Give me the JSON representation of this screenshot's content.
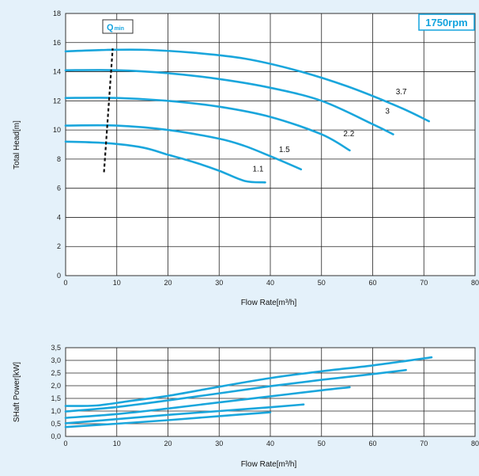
{
  "chart_data": [
    {
      "type": "line",
      "title": "",
      "xlabel": "Flow Rate[m³/h]",
      "ylabel": "Total Head[m]",
      "xlim": [
        0,
        80
      ],
      "ylim": [
        0,
        18
      ],
      "xticks": [
        0,
        10,
        20,
        30,
        40,
        50,
        60,
        70,
        80
      ],
      "yticks": [
        0,
        2,
        4,
        6,
        8,
        10,
        12,
        14,
        16,
        18
      ],
      "grid": true,
      "speed_label": "1750rpm",
      "qmin": {
        "label_main": "Q",
        "label_sub": "min",
        "line": [
          [
            7.5,
            7.1
          ],
          [
            9.2,
            15.6
          ]
        ]
      },
      "line_color": "#1aa6dc",
      "series": [
        {
          "name": "1.1",
          "points": [
            [
              0,
              9.2
            ],
            [
              8,
              9.1
            ],
            [
              15,
              8.8
            ],
            [
              20,
              8.3
            ],
            [
              25,
              7.8
            ],
            [
              30,
              7.2
            ],
            [
              35,
              6.5
            ],
            [
              39,
              6.4
            ]
          ]
        },
        {
          "name": "1.5",
          "points": [
            [
              0,
              10.3
            ],
            [
              10,
              10.3
            ],
            [
              20,
              10.0
            ],
            [
              30,
              9.4
            ],
            [
              35,
              8.9
            ],
            [
              40,
              8.2
            ],
            [
              46,
              7.3
            ]
          ]
        },
        {
          "name": "2.2",
          "points": [
            [
              0,
              12.2
            ],
            [
              10,
              12.2
            ],
            [
              20,
              12.0
            ],
            [
              30,
              11.6
            ],
            [
              40,
              10.9
            ],
            [
              50,
              9.7
            ],
            [
              55.5,
              8.6
            ]
          ]
        },
        {
          "name": "3",
          "points": [
            [
              0,
              14.1
            ],
            [
              10,
              14.1
            ],
            [
              20,
              13.9
            ],
            [
              30,
              13.5
            ],
            [
              40,
              12.9
            ],
            [
              50,
              12.0
            ],
            [
              60,
              10.4
            ],
            [
              64,
              9.7
            ]
          ]
        },
        {
          "name": "3.7",
          "points": [
            [
              0,
              15.4
            ],
            [
              8,
              15.5
            ],
            [
              16,
              15.5
            ],
            [
              25,
              15.3
            ],
            [
              35,
              14.9
            ],
            [
              45,
              14.1
            ],
            [
              55,
              13.0
            ],
            [
              65,
              11.6
            ],
            [
              71,
              10.6
            ]
          ]
        }
      ]
    },
    {
      "type": "line",
      "title": "",
      "xlabel": "Flow Rate[m³/h]",
      "ylabel": "SHaft Power[kW]",
      "xlim": [
        0,
        80
      ],
      "ylim": [
        0,
        3.5
      ],
      "xticks": [
        0,
        10,
        20,
        30,
        40,
        50,
        60,
        70,
        80
      ],
      "yticks": [
        "0,0",
        "0,5",
        "1,0",
        "1,5",
        "2,0",
        "2,5",
        "3,0",
        "3,5"
      ],
      "ytick_values": [
        0,
        0.5,
        1.0,
        1.5,
        2.0,
        2.5,
        3.0,
        3.5
      ],
      "grid": true,
      "line_color": "#1aa6dc",
      "series": [
        {
          "name": "1.1",
          "points": [
            [
              0,
              0.37
            ],
            [
              10,
              0.5
            ],
            [
              20,
              0.64
            ],
            [
              30,
              0.8
            ],
            [
              40,
              0.95
            ]
          ]
        },
        {
          "name": "1.5",
          "points": [
            [
              0,
              0.52
            ],
            [
              10,
              0.68
            ],
            [
              20,
              0.85
            ],
            [
              30,
              1.0
            ],
            [
              40,
              1.15
            ],
            [
              46.5,
              1.26
            ]
          ]
        },
        {
          "name": "2.2",
          "points": [
            [
              0,
              0.73
            ],
            [
              10,
              0.88
            ],
            [
              20,
              1.1
            ],
            [
              30,
              1.34
            ],
            [
              40,
              1.58
            ],
            [
              50,
              1.82
            ],
            [
              55.5,
              1.94
            ]
          ]
        },
        {
          "name": "3",
          "points": [
            [
              0,
              0.98
            ],
            [
              10,
              1.16
            ],
            [
              20,
              1.42
            ],
            [
              30,
              1.7
            ],
            [
              40,
              1.98
            ],
            [
              50,
              2.23
            ],
            [
              60,
              2.46
            ],
            [
              66.5,
              2.62
            ]
          ]
        },
        {
          "name": "3.7",
          "points": [
            [
              0,
              1.2
            ],
            [
              6,
              1.22
            ],
            [
              12,
              1.38
            ],
            [
              20,
              1.6
            ],
            [
              30,
              1.96
            ],
            [
              40,
              2.3
            ],
            [
              50,
              2.57
            ],
            [
              60,
              2.8
            ],
            [
              71.5,
              3.12
            ]
          ]
        }
      ]
    }
  ]
}
